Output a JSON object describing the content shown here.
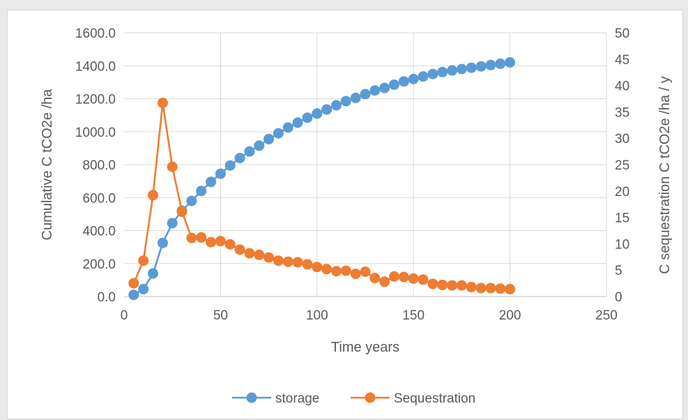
{
  "chart_data": {
    "type": "line",
    "title": "",
    "xlabel": "Time years",
    "ylabel_left": "Cumulative C tCO2e /ha",
    "ylabel_right": "C sequestration C tCO2e /ha / y",
    "xlim": [
      0,
      250
    ],
    "xticks": [
      "0",
      "50",
      "100",
      "150",
      "200",
      "250"
    ],
    "ylim_left": [
      0,
      1600
    ],
    "yticks_left": [
      "0.0",
      "200.0",
      "400.0",
      "600.0",
      "800.0",
      "1000.0",
      "1200.0",
      "1400.0",
      "1600.0"
    ],
    "ylim_right": [
      0,
      50
    ],
    "yticks_right": [
      "0",
      "5",
      "10",
      "15",
      "20",
      "25",
      "30",
      "35",
      "40",
      "45",
      "50"
    ],
    "grid": true,
    "legend_position": "bottom",
    "series": [
      {
        "name": "storage",
        "axis": "left",
        "color": "#5b9bd5",
        "x": [
          5,
          10,
          15,
          20,
          25,
          30,
          35,
          40,
          45,
          50,
          55,
          60,
          65,
          70,
          75,
          80,
          85,
          90,
          95,
          100,
          105,
          110,
          115,
          120,
          125,
          130,
          135,
          140,
          145,
          150,
          155,
          160,
          165,
          170,
          175,
          180,
          185,
          190,
          195,
          200
        ],
        "values": [
          10,
          45,
          140,
          325,
          445,
          520,
          580,
          640,
          695,
          745,
          795,
          840,
          880,
          915,
          955,
          990,
          1025,
          1055,
          1085,
          1110,
          1135,
          1160,
          1185,
          1205,
          1228,
          1250,
          1265,
          1285,
          1305,
          1320,
          1335,
          1350,
          1362,
          1372,
          1380,
          1388,
          1396,
          1404,
          1412,
          1420
        ]
      },
      {
        "name": "Sequestration",
        "axis": "right",
        "color": "#ed7d31",
        "x": [
          5,
          10,
          15,
          20,
          25,
          30,
          35,
          40,
          45,
          50,
          55,
          60,
          65,
          70,
          75,
          80,
          85,
          90,
          95,
          100,
          105,
          110,
          115,
          120,
          125,
          130,
          135,
          140,
          145,
          150,
          155,
          160,
          165,
          170,
          175,
          180,
          185,
          190,
          195,
          200
        ],
        "values": [
          2.5,
          6.8,
          19.2,
          36.7,
          24.6,
          16.1,
          11.1,
          11.2,
          10.3,
          10.5,
          9.9,
          8.9,
          8.2,
          7.9,
          7.4,
          6.8,
          6.6,
          6.5,
          6.1,
          5.6,
          5.2,
          4.8,
          4.9,
          4.3,
          4.7,
          3.5,
          2.8,
          3.8,
          3.7,
          3.4,
          3.2,
          2.4,
          2.2,
          2.1,
          2.1,
          1.8,
          1.6,
          1.6,
          1.5,
          1.4
        ]
      }
    ]
  }
}
